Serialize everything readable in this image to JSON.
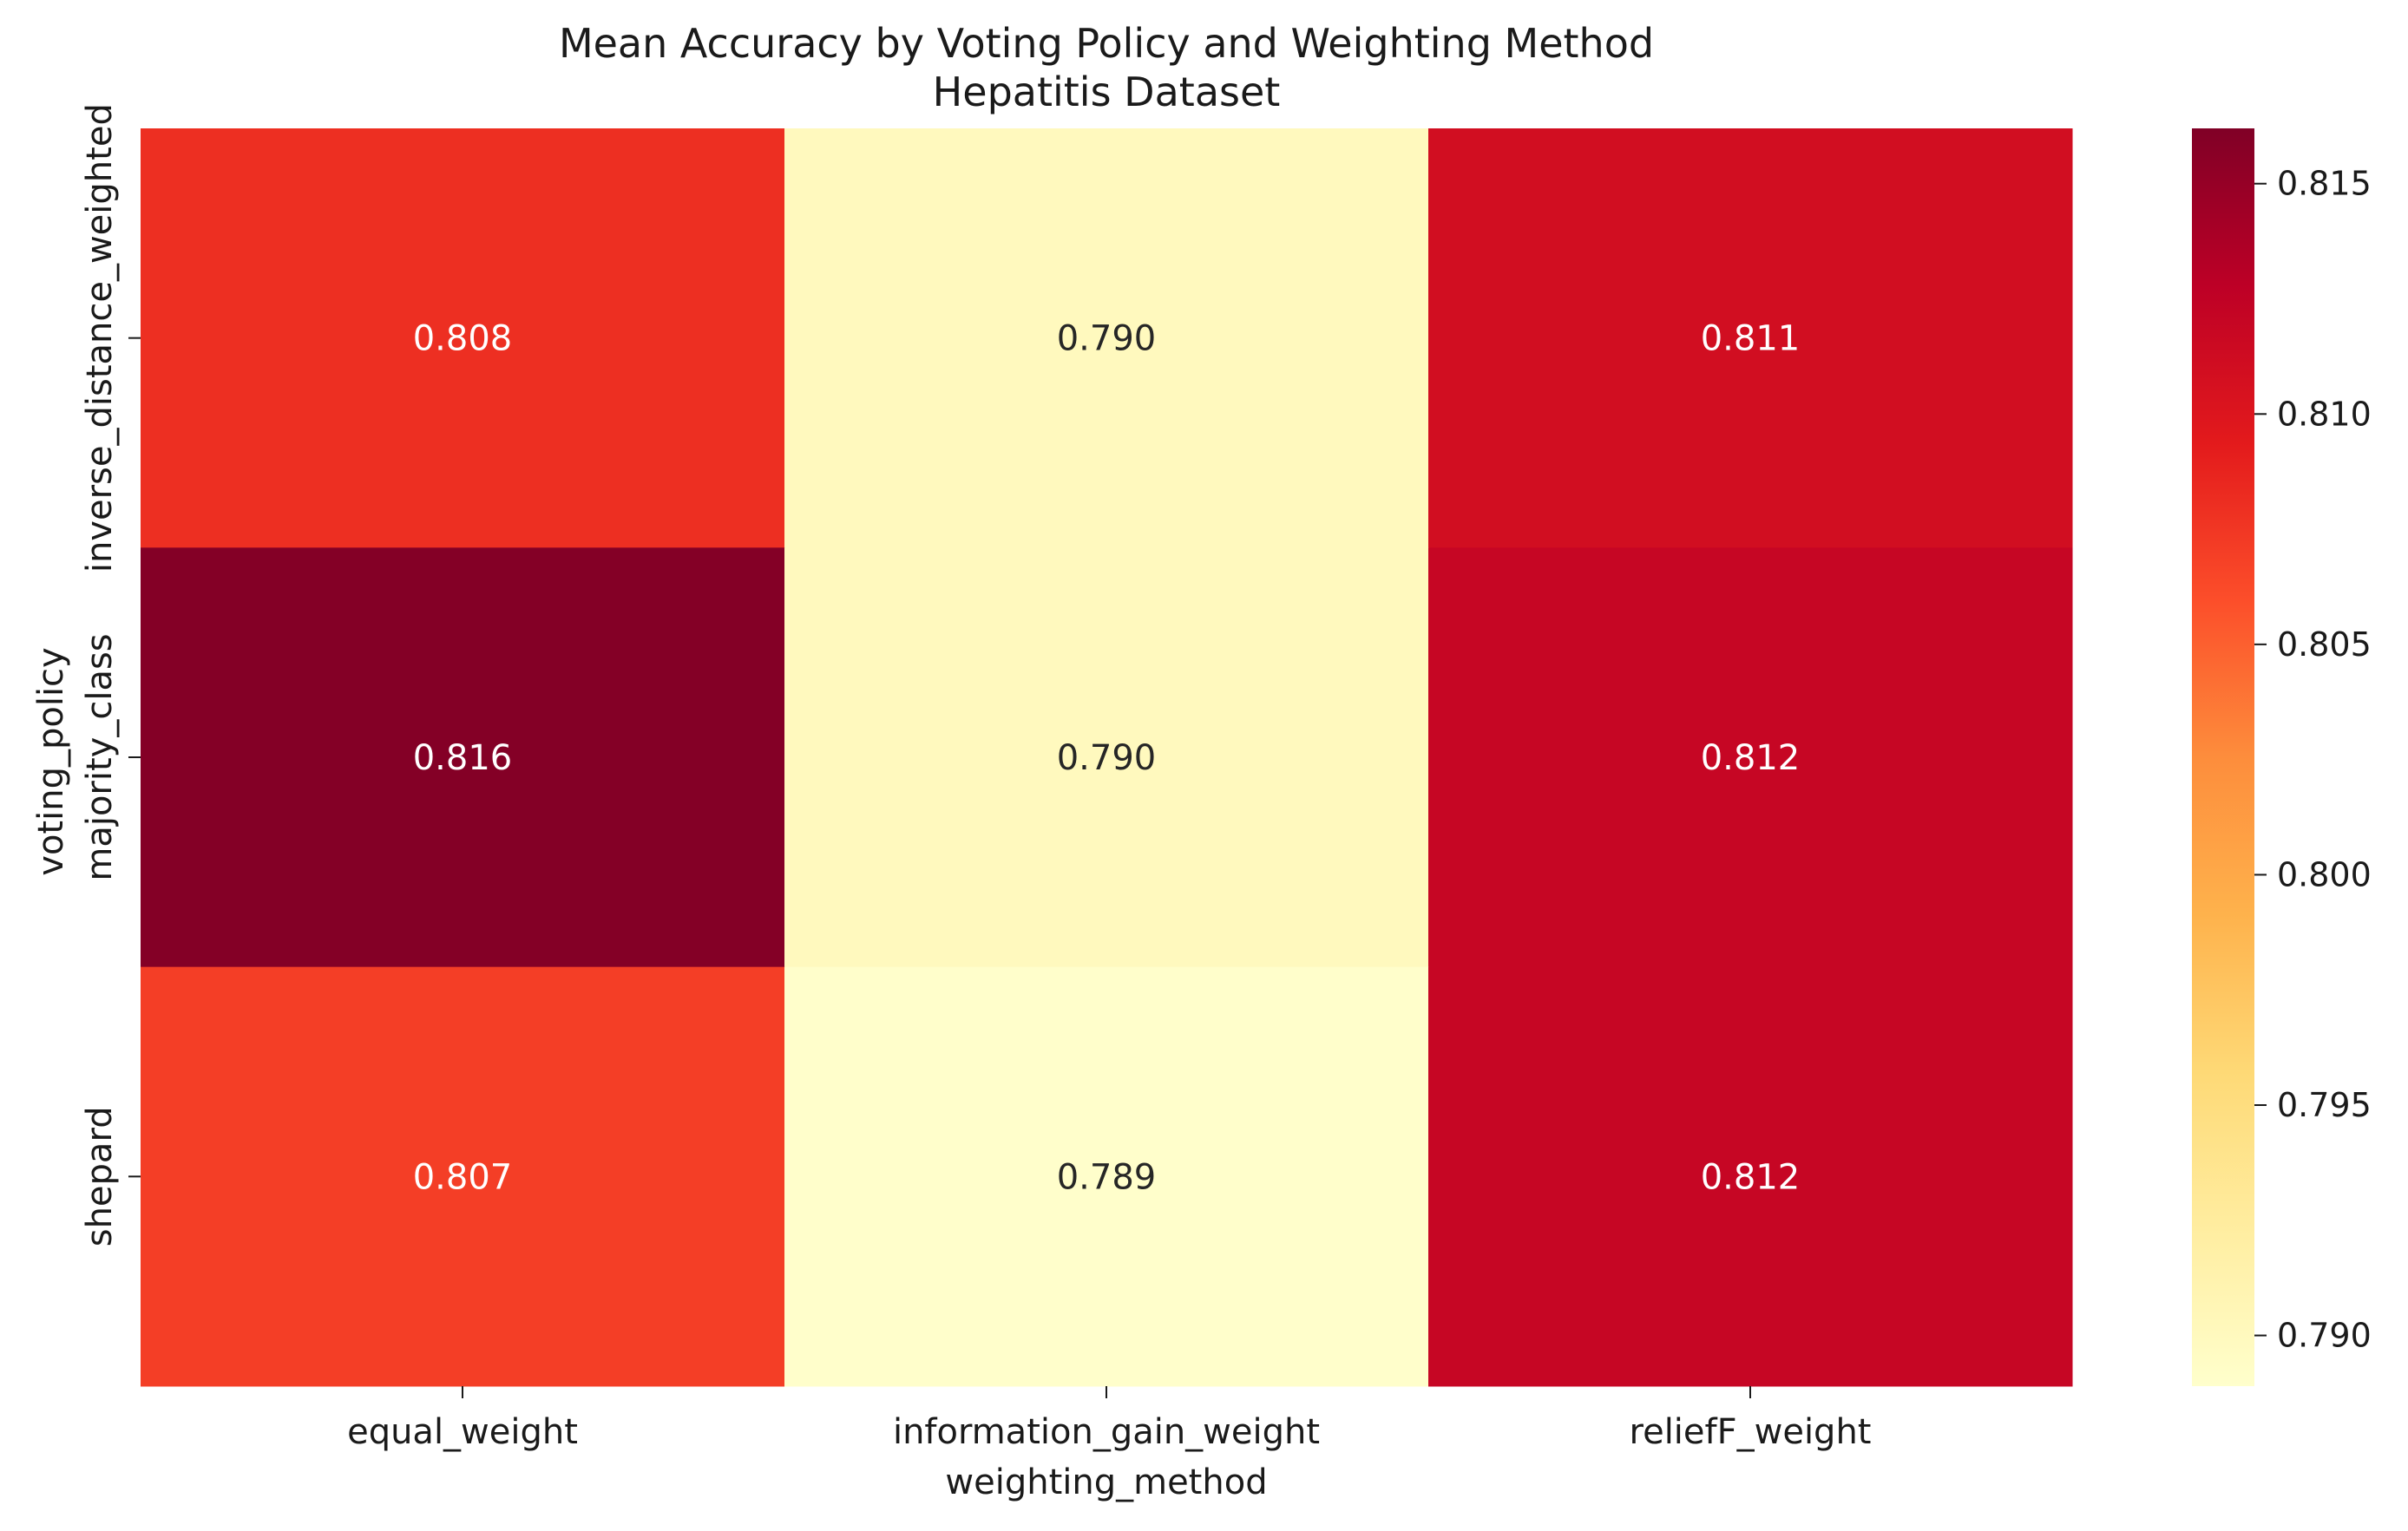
{
  "chart_data": {
    "type": "heatmap",
    "title": "Mean Accuracy by Voting Policy and Weighting Method",
    "subtitle": "Hepatitis Dataset",
    "xlabel": "weighting_method",
    "ylabel": "voting_policy",
    "x_categories": [
      "equal_weight",
      "information_gain_weight",
      "reliefF_weight"
    ],
    "y_categories": [
      "inverse_distance_weighted",
      "majority_class",
      "shepard"
    ],
    "values": [
      [
        0.808,
        0.79,
        0.811
      ],
      [
        0.816,
        0.79,
        0.812
      ],
      [
        0.807,
        0.789,
        0.812
      ]
    ],
    "cell_labels": [
      [
        "0.808",
        "0.790",
        "0.811"
      ],
      [
        "0.816",
        "0.790",
        "0.812"
      ],
      [
        "0.807",
        "0.789",
        "0.812"
      ]
    ],
    "colormap": "YlOrRd",
    "colorbar": {
      "vmin": 0.7889,
      "vmax": 0.8162,
      "ticks": [
        0.79,
        0.795,
        0.8,
        0.805,
        0.81,
        0.815
      ],
      "tick_labels": [
        "0.790",
        "0.795",
        "0.800",
        "0.805",
        "0.810",
        "0.815"
      ]
    }
  }
}
